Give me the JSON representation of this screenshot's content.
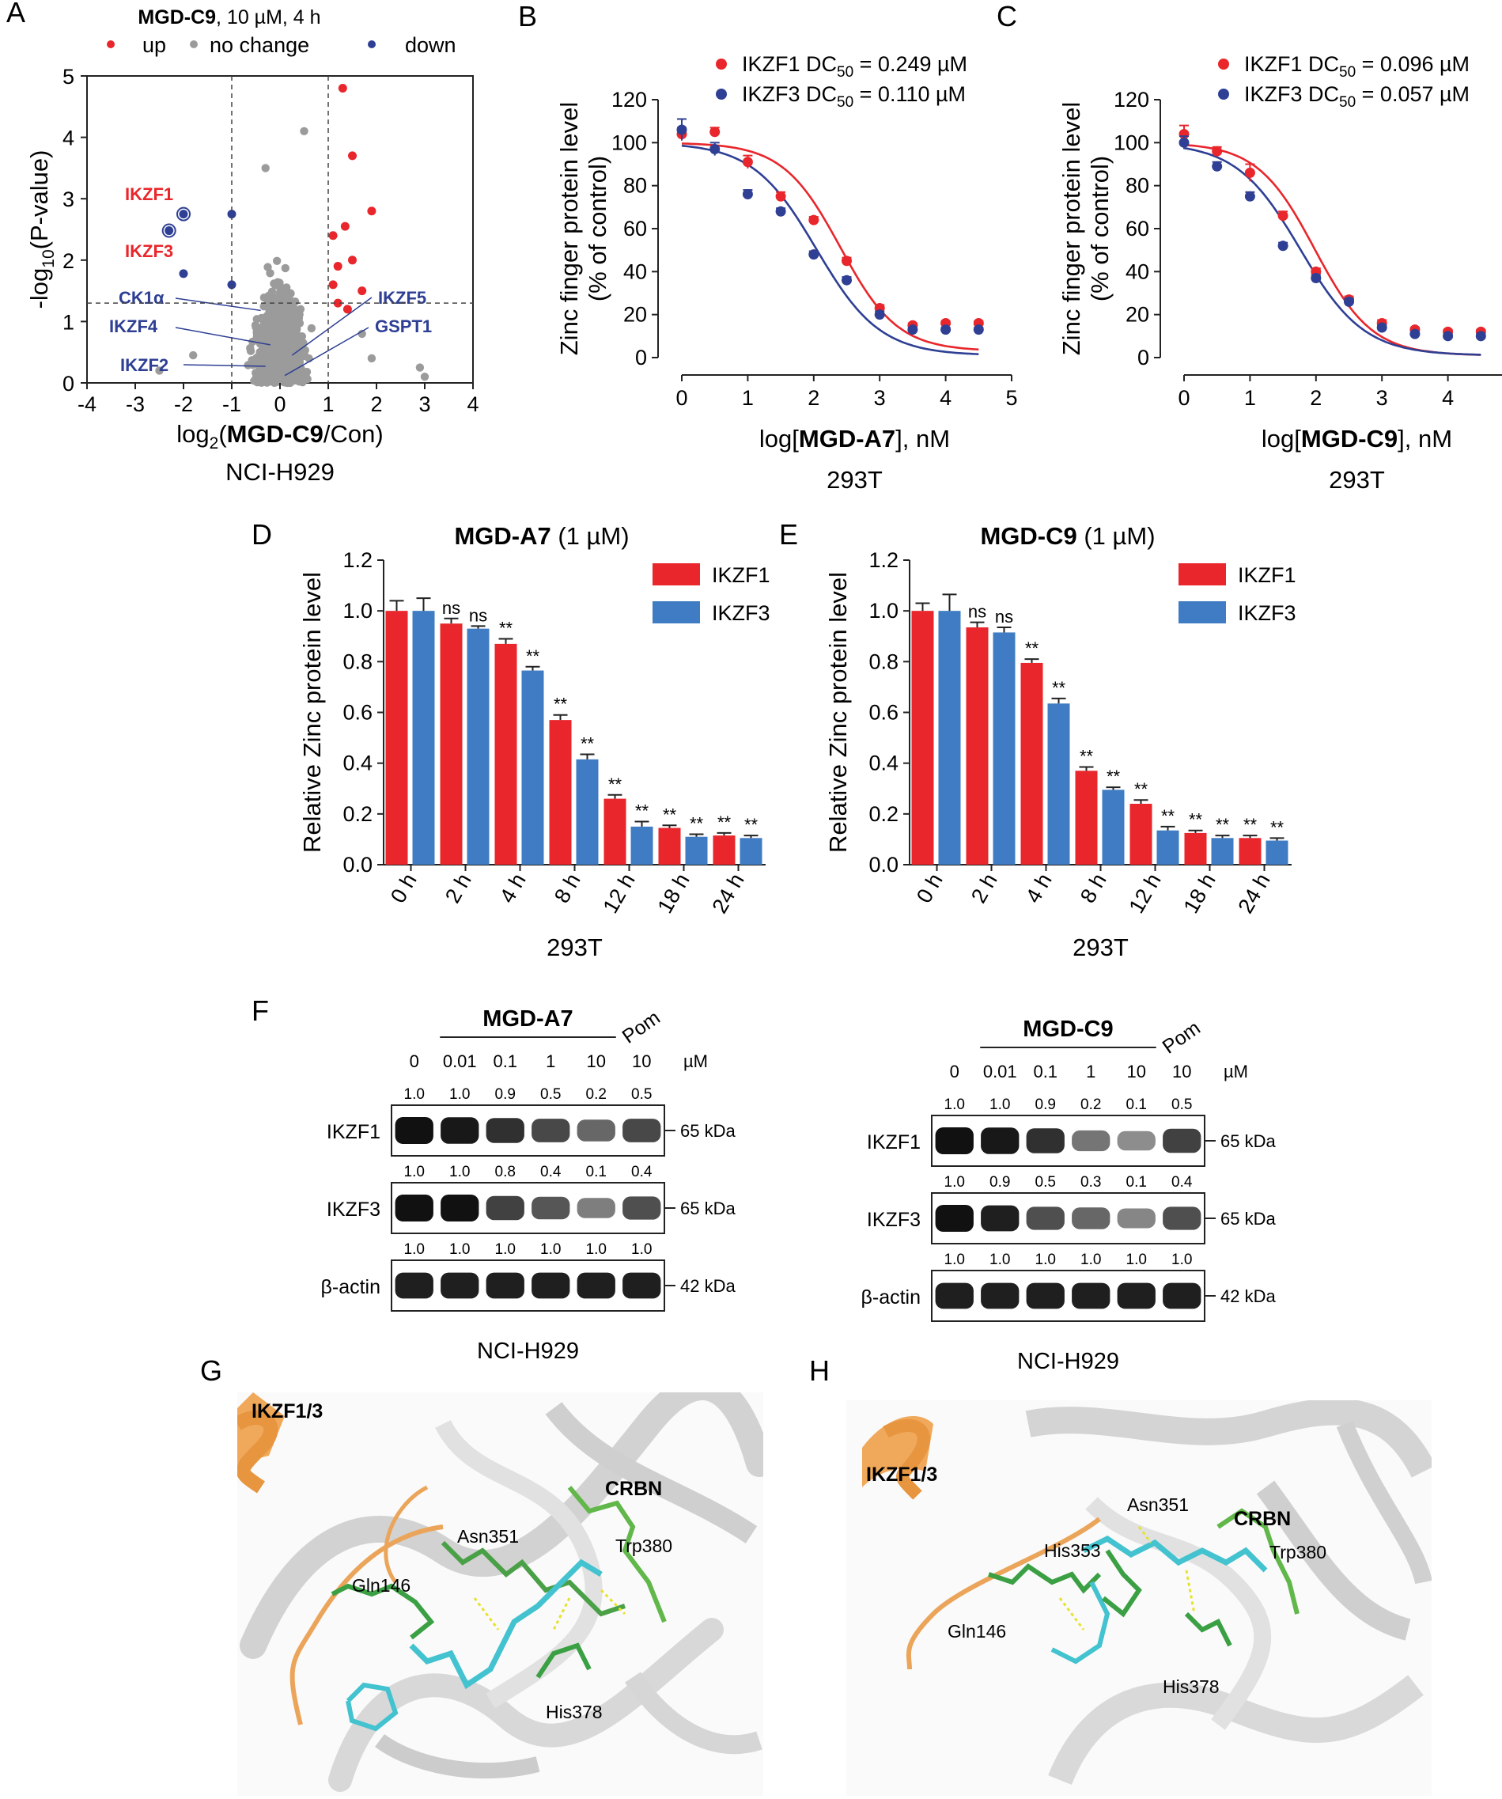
{
  "panel_letters": [
    "A",
    "B",
    "C",
    "D",
    "E",
    "F",
    "G",
    "H"
  ],
  "chart_data": [
    {
      "panel": "A",
      "type": "scatter",
      "title_bold": "MGD-C9",
      "title_rest": ", 10 µM, 4 h",
      "legend": [
        "up",
        "no change",
        "down"
      ],
      "colors": {
        "up": "#e8262b",
        "no_change": "#9b9b9b",
        "down": "#2e3f94"
      },
      "xlabel_pre": "log",
      "xlabel_sub": "2",
      "xlabel_bold": "MGD-C9",
      "xlabel_post": "/Con)",
      "xlabel_open": "(",
      "ylabel_pre": "-log",
      "ylabel_sub": "10",
      "ylabel_post": "(P-value)",
      "caption": "NCI-H929",
      "xlim": [
        -4,
        4
      ],
      "ylim": [
        0,
        5
      ],
      "xticks": [
        "-4",
        "-3",
        "-2",
        "-1",
        "0",
        "1",
        "2",
        "3",
        "4"
      ],
      "yticks": [
        "0",
        "1",
        "2",
        "3",
        "4",
        "5"
      ],
      "thresholds": {
        "x": [
          -1,
          1
        ],
        "y": 1.3
      },
      "up_points": [
        [
          1.3,
          4.8
        ],
        [
          1.5,
          3.7
        ],
        [
          1.9,
          2.8
        ],
        [
          1.1,
          2.4
        ],
        [
          1.2,
          1.9
        ],
        [
          1.5,
          2.0
        ],
        [
          1.7,
          1.5
        ],
        [
          1.1,
          1.6
        ],
        [
          1.2,
          1.3
        ],
        [
          1.4,
          1.2
        ],
        [
          1.35,
          2.55
        ]
      ],
      "down_points": [
        [
          -2.0,
          2.75
        ],
        [
          -2.3,
          2.48
        ],
        [
          -1.0,
          2.75
        ],
        [
          -2.0,
          1.78
        ],
        [
          -1.0,
          1.6
        ]
      ],
      "labels": [
        {
          "text": "IKZF1",
          "color": "#e8262b",
          "x": -2.0,
          "y": 2.75
        },
        {
          "text": "IKZF3",
          "color": "#e8262b",
          "x": -2.3,
          "y": 2.48
        },
        {
          "text": "CK1α",
          "color": "#2e3f94",
          "x": -0.4,
          "y": 1.18
        },
        {
          "text": "IKZF4",
          "color": "#2e3f94",
          "x": -0.2,
          "y": 0.62
        },
        {
          "text": "IKZF2",
          "color": "#2e3f94",
          "x": -0.3,
          "y": 0.27
        },
        {
          "text": "IKZF5",
          "color": "#2e3f94",
          "x": 0.25,
          "y": 0.45
        },
        {
          "text": "GSPT1",
          "color": "#2e3f94",
          "x": 0.1,
          "y": 0.12
        }
      ]
    },
    {
      "panel": "B",
      "type": "scatter",
      "xlabel_pre": "log[",
      "xlabel_bold": "MGD-A7",
      "xlabel_post": "], nM",
      "ylabel": [
        "Zinc finger protein level",
        "(% of control)"
      ],
      "caption": "293T",
      "xlim": [
        0,
        5
      ],
      "ylim": [
        0,
        120
      ],
      "xticks": [
        "0",
        "1",
        "2",
        "3",
        "4",
        "5"
      ],
      "yticks": [
        "0",
        "20",
        "40",
        "60",
        "80",
        "100",
        "120"
      ],
      "x": [
        0,
        0.5,
        1,
        1.5,
        2,
        2.5,
        3,
        3.5,
        4,
        4.5
      ],
      "series": [
        {
          "name": "IKZF1",
          "dc50_text": "0.249 µM",
          "color": "#e8262b",
          "logdc50": 2.4,
          "hill": 1.0,
          "top": 100,
          "bottom": 3,
          "values": [
            104,
            105,
            91,
            75,
            64,
            45,
            23,
            15,
            16,
            16
          ],
          "err": [
            3,
            2,
            3,
            2,
            1.5,
            1.5,
            1.5,
            1,
            1,
            1
          ]
        },
        {
          "name": "IKZF3",
          "dc50_text": "0.110 µM",
          "color": "#2e3f94",
          "logdc50": 2.04,
          "hill": 0.9,
          "top": 100,
          "bottom": 1,
          "values": [
            106,
            97,
            76,
            68,
            48,
            36,
            20,
            13,
            13,
            13
          ],
          "err": [
            5,
            3,
            2,
            1.5,
            1.5,
            1.5,
            1.5,
            1,
            1,
            1
          ]
        }
      ]
    },
    {
      "panel": "C",
      "type": "scatter",
      "xlabel_pre": "log[",
      "xlabel_bold": "MGD-C9",
      "xlabel_post": "], nM",
      "ylabel": [
        "Zinc finger protein level",
        "(% of control)"
      ],
      "caption": "293T",
      "xlim": [
        0,
        5
      ],
      "ylim": [
        0,
        120
      ],
      "xticks": [
        "0",
        "1",
        "2",
        "3",
        "4",
        "5"
      ],
      "yticks": [
        "0",
        "20",
        "40",
        "60",
        "80",
        "100",
        "120"
      ],
      "x": [
        0,
        0.5,
        1,
        1.5,
        2,
        2.5,
        3,
        3.5,
        4,
        4.5
      ],
      "series": [
        {
          "name": "IKZF1",
          "dc50_text": "0.096 µM",
          "color": "#e8262b",
          "logdc50": 1.98,
          "hill": 1.0,
          "top": 100,
          "bottom": 1,
          "values": [
            104,
            96,
            86,
            66,
            40,
            27,
            16,
            13,
            12,
            12
          ],
          "err": [
            4,
            2,
            4,
            2,
            1.5,
            1.5,
            1.5,
            1,
            1,
            1
          ]
        },
        {
          "name": "IKZF3",
          "dc50_text": "0.057 µM",
          "color": "#2e3f94",
          "logdc50": 1.76,
          "hill": 0.9,
          "top": 100,
          "bottom": 1,
          "values": [
            100,
            89,
            75,
            52,
            37,
            26,
            14,
            11,
            10,
            10
          ],
          "err": [
            3,
            2,
            2,
            1.5,
            1.5,
            1.5,
            1,
            1,
            1,
            1
          ]
        }
      ]
    },
    {
      "panel": "D",
      "type": "bar",
      "title_bold": "MGD-A7",
      "title_rest": " (1 µM)",
      "ylabel": "Relative Zinc protein level",
      "caption": "293T",
      "categories": [
        "0 h",
        "2 h",
        "4 h",
        "8 h",
        "12 h",
        "18 h",
        "24 h"
      ],
      "ylim": [
        0,
        1.2
      ],
      "yticks": [
        "0.0",
        "0.2",
        "0.4",
        "0.6",
        "0.8",
        "1.0",
        "1.2"
      ],
      "series": [
        {
          "name": "IKZF1",
          "color": "#e8262b",
          "values": [
            1.0,
            0.95,
            0.87,
            0.57,
            0.26,
            0.145,
            0.115
          ],
          "err": [
            0.04,
            0.02,
            0.02,
            0.02,
            0.015,
            0.01,
            0.01
          ],
          "sig": [
            "",
            "ns",
            "**",
            "**",
            "**",
            "**",
            "**"
          ]
        },
        {
          "name": "IKZF3",
          "color": "#3f7cc3",
          "values": [
            1.0,
            0.93,
            0.765,
            0.415,
            0.15,
            0.11,
            0.105
          ],
          "err": [
            0.05,
            0.01,
            0.015,
            0.02,
            0.02,
            0.01,
            0.01
          ],
          "sig": [
            "",
            "ns",
            "**",
            "**",
            "**",
            "**",
            "**"
          ]
        }
      ]
    },
    {
      "panel": "E",
      "type": "bar",
      "title_bold": "MGD-C9",
      "title_rest": " (1 µM)",
      "ylabel": "Relative Zinc protein level",
      "caption": "293T",
      "categories": [
        "0 h",
        "2 h",
        "4 h",
        "8 h",
        "12 h",
        "18 h",
        "24 h"
      ],
      "ylim": [
        0,
        1.2
      ],
      "yticks": [
        "0.0",
        "0.2",
        "0.4",
        "0.6",
        "0.8",
        "1.0",
        "1.2"
      ],
      "series": [
        {
          "name": "IKZF1",
          "color": "#e8262b",
          "values": [
            1.0,
            0.935,
            0.795,
            0.37,
            0.24,
            0.125,
            0.105
          ],
          "err": [
            0.03,
            0.02,
            0.015,
            0.015,
            0.015,
            0.01,
            0.01
          ],
          "sig": [
            "",
            "ns",
            "**",
            "**",
            "**",
            "**",
            "**"
          ]
        },
        {
          "name": "IKZF3",
          "color": "#3f7cc3",
          "values": [
            1.0,
            0.915,
            0.635,
            0.295,
            0.135,
            0.105,
            0.095
          ],
          "err": [
            0.065,
            0.02,
            0.02,
            0.01,
            0.015,
            0.01,
            0.01
          ],
          "sig": [
            "",
            "ns",
            "**",
            "**",
            "**",
            "**",
            "**"
          ]
        }
      ]
    }
  ],
  "westerns": [
    {
      "panel": "F",
      "compound": "MGD-A7",
      "pom": "Pom",
      "conc": [
        "0",
        "0.01",
        "0.1",
        "1",
        "10",
        "10"
      ],
      "unit": "µM",
      "caption": "NCI-H929",
      "blots": [
        {
          "label": "IKZF1",
          "kda": "65 kDa",
          "quant": [
            "1.0",
            "1.0",
            "0.9",
            "0.5",
            "0.2",
            "0.5"
          ],
          "int": [
            1.0,
            0.95,
            0.8,
            0.65,
            0.45,
            0.65
          ]
        },
        {
          "label": "IKZF3",
          "kda": "65 kDa",
          "quant": [
            "1.0",
            "1.0",
            "0.8",
            "0.4",
            "0.1",
            "0.4"
          ],
          "int": [
            1.0,
            1.0,
            0.7,
            0.55,
            0.3,
            0.6
          ]
        },
        {
          "label": "β-actin",
          "kda": "42 kDa",
          "quant": [
            "1.0",
            "1.0",
            "1.0",
            "1.0",
            "1.0",
            "1.0"
          ],
          "int": [
            0.9,
            0.9,
            0.9,
            0.9,
            0.9,
            0.9
          ]
        }
      ]
    },
    {
      "panel": "F2",
      "compound": "MGD-C9",
      "pom": "Pom",
      "conc": [
        "0",
        "0.01",
        "0.1",
        "1",
        "10",
        "10"
      ],
      "unit": "µM",
      "caption": "NCI-H929",
      "blots": [
        {
          "label": "IKZF1",
          "kda": "65 kDa",
          "quant": [
            "1.0",
            "1.0",
            "0.9",
            "0.2",
            "0.1",
            "0.5"
          ],
          "int": [
            1.0,
            0.95,
            0.8,
            0.35,
            0.2,
            0.7
          ]
        },
        {
          "label": "IKZF3",
          "kda": "65 kDa",
          "quant": [
            "1.0",
            "0.9",
            "0.5",
            "0.3",
            "0.1",
            "0.4"
          ],
          "int": [
            1.0,
            0.9,
            0.6,
            0.45,
            0.25,
            0.6
          ]
        },
        {
          "label": "β-actin",
          "kda": "42 kDa",
          "quant": [
            "1.0",
            "1.0",
            "1.0",
            "1.0",
            "1.0",
            "1.0"
          ],
          "int": [
            0.9,
            0.9,
            0.9,
            0.9,
            0.9,
            0.9
          ]
        }
      ]
    }
  ],
  "structures": [
    {
      "panel": "G",
      "labels": [
        "IKZF1/3",
        "CRBN",
        "Asn351",
        "Gln146",
        "Trp380",
        "His378"
      ]
    },
    {
      "panel": "H",
      "labels": [
        "IKZF1/3",
        "CRBN",
        "Asn351",
        "His353",
        "Gln146",
        "Trp380",
        "His378"
      ]
    }
  ]
}
